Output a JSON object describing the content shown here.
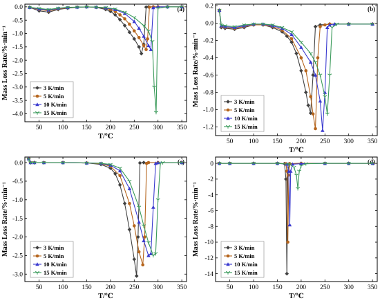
{
  "figure": {
    "panels": [
      "(a)",
      "(b)",
      "(c)",
      "(d)"
    ]
  },
  "chart_data": [
    {
      "type": "line",
      "panel_label": "(a)",
      "xlabel": "T/℃",
      "ylabel": "Mass Loss Rate/%·min⁻¹",
      "xlim": [
        20,
        360
      ],
      "ylim": [
        -4.3,
        0.1
      ],
      "xticks": [
        50,
        100,
        150,
        200,
        250,
        300,
        350
      ],
      "yticks": [
        0.0,
        -0.5,
        -1.0,
        -1.5,
        -2.0,
        -2.5,
        -3.0,
        -3.5,
        -4.0
      ],
      "ytick_labels": [
        "0.0",
        "-0.5",
        "-1.0",
        "-1.5",
        "-2.0",
        "-2.5",
        "-3.0",
        "-3.5",
        "-4.0"
      ],
      "legend_position": "bottom-left",
      "series": [
        {
          "name": "3 K/min",
          "color": "#404040",
          "marker": "diamond",
          "x": [
            30,
            50,
            70,
            90,
            110,
            130,
            150,
            170,
            190,
            200,
            210,
            220,
            230,
            240,
            250,
            260,
            265,
            270,
            275,
            280,
            290,
            300,
            320,
            350
          ],
          "y": [
            -0.02,
            -0.15,
            -0.2,
            -0.1,
            -0.05,
            -0.02,
            0.0,
            -0.02,
            -0.1,
            -0.17,
            -0.3,
            -0.48,
            -0.7,
            -0.95,
            -1.2,
            -1.5,
            -1.75,
            -1.4,
            -0.01,
            0.0,
            0.0,
            0.0,
            0.0,
            0.0
          ]
        },
        {
          "name": "5 K/min",
          "color": "#b5651d",
          "marker": "circle",
          "x": [
            30,
            50,
            70,
            90,
            110,
            130,
            150,
            170,
            190,
            200,
            210,
            220,
            230,
            240,
            250,
            260,
            270,
            275,
            278,
            282,
            290,
            300,
            320,
            350
          ],
          "y": [
            -0.02,
            -0.1,
            -0.15,
            -0.08,
            -0.04,
            -0.01,
            0.0,
            -0.02,
            -0.06,
            -0.1,
            -0.18,
            -0.3,
            -0.45,
            -0.65,
            -0.9,
            -1.15,
            -1.45,
            -1.6,
            -1.2,
            -0.01,
            0.0,
            0.0,
            0.0,
            0.0
          ]
        },
        {
          "name": "10 K/min",
          "color": "#3a3acf",
          "marker": "triangle",
          "x": [
            30,
            50,
            70,
            90,
            110,
            130,
            150,
            170,
            190,
            210,
            230,
            250,
            260,
            270,
            280,
            285,
            290,
            300,
            320,
            350
          ],
          "y": [
            -0.02,
            -0.08,
            -0.12,
            -0.06,
            -0.03,
            -0.01,
            0.0,
            -0.01,
            -0.04,
            -0.1,
            -0.25,
            -0.55,
            -0.8,
            -1.1,
            -1.45,
            -1.6,
            -0.03,
            0.0,
            0.0,
            0.0
          ]
        },
        {
          "name": "15 K/min",
          "color": "#3a9a5a",
          "marker": "tri-down",
          "x": [
            30,
            50,
            70,
            90,
            110,
            130,
            150,
            170,
            190,
            210,
            230,
            250,
            270,
            280,
            288,
            292,
            296,
            300,
            320,
            350
          ],
          "y": [
            -0.02,
            -0.06,
            -0.1,
            -0.05,
            -0.02,
            -0.01,
            0.0,
            -0.01,
            -0.03,
            -0.08,
            -0.2,
            -0.4,
            -0.7,
            -0.9,
            -1.3,
            -3.0,
            -3.95,
            -0.05,
            0.0,
            0.0
          ]
        }
      ]
    },
    {
      "type": "line",
      "panel_label": "(b)",
      "xlabel": "T/℃",
      "ylabel": "Mass Loss Rate/%·min⁻¹",
      "xlim": [
        20,
        360
      ],
      "ylim": [
        -1.3,
        0.22
      ],
      "xticks": [
        50,
        100,
        150,
        200,
        250,
        300,
        350
      ],
      "yticks": [
        0.2,
        0.0,
        -0.2,
        -0.4,
        -0.6,
        -0.8,
        -1.0,
        -1.2
      ],
      "ytick_labels": [
        "0.2",
        "0.0",
        "-0.2",
        "-0.4",
        "-0.6",
        "-0.8",
        "-1.0",
        "-1.2"
      ],
      "legend_position": "bottom-left",
      "series": [
        {
          "name": "3 K/min",
          "color": "#404040",
          "marker": "diamond",
          "x": [
            28,
            32,
            40,
            60,
            80,
            100,
            120,
            140,
            160,
            170,
            180,
            190,
            200,
            210,
            215,
            220,
            225,
            230,
            240,
            260,
            300,
            350
          ],
          "y": [
            0.14,
            -0.05,
            -0.06,
            -0.07,
            -0.05,
            -0.02,
            -0.02,
            -0.05,
            -0.1,
            -0.15,
            -0.22,
            -0.35,
            -0.55,
            -0.8,
            -0.95,
            -1.04,
            -0.6,
            -0.04,
            -0.02,
            -0.01,
            -0.01,
            -0.01
          ]
        },
        {
          "name": "5 K/min",
          "color": "#b5651d",
          "marker": "circle",
          "x": [
            28,
            32,
            40,
            60,
            80,
            100,
            120,
            140,
            160,
            180,
            200,
            210,
            220,
            225,
            230,
            235,
            240,
            250,
            260,
            300,
            350
          ],
          "y": [
            0.15,
            -0.04,
            -0.05,
            -0.06,
            -0.04,
            -0.02,
            -0.02,
            -0.04,
            -0.08,
            -0.18,
            -0.4,
            -0.55,
            -0.85,
            -1.05,
            -1.22,
            -0.4,
            -0.04,
            -0.02,
            -0.01,
            -0.01,
            -0.01
          ]
        },
        {
          "name": "10 K/min",
          "color": "#3a3acf",
          "marker": "triangle",
          "x": [
            28,
            32,
            40,
            60,
            80,
            100,
            120,
            140,
            160,
            180,
            200,
            220,
            230,
            240,
            245,
            250,
            255,
            260,
            270,
            300,
            350
          ],
          "y": [
            0.15,
            -0.03,
            -0.04,
            -0.05,
            -0.03,
            -0.01,
            -0.01,
            -0.03,
            -0.06,
            -0.13,
            -0.28,
            -0.45,
            -0.6,
            -0.9,
            -1.24,
            -0.8,
            -0.05,
            -0.02,
            -0.01,
            -0.01,
            -0.01
          ]
        },
        {
          "name": "15 K/min",
          "color": "#3a9a5a",
          "marker": "tri-down",
          "x": [
            28,
            32,
            40,
            60,
            80,
            100,
            120,
            140,
            160,
            180,
            200,
            220,
            230,
            240,
            250,
            255,
            260,
            265,
            275,
            300,
            350
          ],
          "y": [
            0.15,
            -0.02,
            -0.03,
            -0.04,
            -0.02,
            -0.01,
            -0.01,
            -0.02,
            -0.05,
            -0.1,
            -0.22,
            -0.35,
            -0.45,
            -0.6,
            -0.85,
            -1.05,
            -0.6,
            -0.05,
            -0.01,
            -0.01,
            -0.01
          ]
        }
      ]
    },
    {
      "type": "line",
      "panel_label": "(c)",
      "xlabel": "T/℃",
      "ylabel": "Mass Loss Rate/%·min⁻¹",
      "xlim": [
        20,
        360
      ],
      "ylim": [
        -3.2,
        0.15
      ],
      "xticks": [
        50,
        100,
        150,
        200,
        250,
        300,
        350
      ],
      "yticks": [
        0.0,
        -0.5,
        -1.0,
        -1.5,
        -2.0,
        -2.5,
        -3.0
      ],
      "ytick_labels": [
        "0.0",
        "-0.5",
        "-1.0",
        "-1.5",
        "-2.0",
        "-2.5",
        "-3.0"
      ],
      "legend_position": "bottom-left",
      "series": [
        {
          "name": "3 K/min",
          "color": "#404040",
          "marker": "diamond",
          "x": [
            28,
            32,
            40,
            60,
            100,
            150,
            180,
            200,
            210,
            220,
            230,
            240,
            250,
            255,
            258,
            262,
            270,
            300,
            350
          ],
          "y": [
            0.1,
            0.0,
            0.0,
            0.0,
            0.0,
            -0.01,
            -0.05,
            -0.15,
            -0.3,
            -0.6,
            -1.1,
            -1.8,
            -2.6,
            -3.05,
            -2.0,
            -0.01,
            0.0,
            0.0,
            0.0
          ]
        },
        {
          "name": "5 K/min",
          "color": "#b5651d",
          "marker": "circle",
          "x": [
            28,
            32,
            40,
            60,
            100,
            150,
            180,
            200,
            220,
            240,
            250,
            260,
            268,
            272,
            276,
            280,
            300,
            350
          ],
          "y": [
            0.1,
            0.0,
            0.0,
            0.0,
            0.0,
            -0.01,
            -0.03,
            -0.1,
            -0.35,
            -1.1,
            -1.7,
            -2.4,
            -2.75,
            -2.0,
            -0.02,
            0.0,
            0.0,
            0.0
          ]
        },
        {
          "name": "10 K/min",
          "color": "#3a3acf",
          "marker": "triangle",
          "x": [
            28,
            32,
            40,
            60,
            100,
            150,
            180,
            200,
            220,
            240,
            260,
            270,
            280,
            285,
            290,
            295,
            300,
            350
          ],
          "y": [
            0.1,
            0.0,
            0.0,
            0.0,
            0.0,
            -0.01,
            -0.02,
            -0.07,
            -0.22,
            -0.7,
            -1.6,
            -2.1,
            -2.5,
            -2.45,
            -1.2,
            -0.02,
            0.0,
            0.0
          ]
        },
        {
          "name": "15 K/min",
          "color": "#3a9a5a",
          "marker": "tri-down",
          "x": [
            28,
            32,
            40,
            60,
            100,
            150,
            180,
            200,
            220,
            240,
            260,
            270,
            280,
            290,
            295,
            300,
            305,
            310,
            350
          ],
          "y": [
            0.1,
            0.0,
            0.0,
            0.0,
            0.0,
            -0.01,
            -0.02,
            -0.05,
            -0.15,
            -0.5,
            -1.2,
            -1.7,
            -2.15,
            -2.5,
            -2.45,
            -1.0,
            -0.02,
            0.0,
            0.0
          ]
        }
      ]
    },
    {
      "type": "line",
      "panel_label": "(d)",
      "xlabel": "T/℃",
      "ylabel": "Mass Loss Rate/%·min⁻¹",
      "xlim": [
        20,
        360
      ],
      "ylim": [
        -15,
        0.8
      ],
      "xticks": [
        50,
        100,
        150,
        200,
        250,
        300,
        350
      ],
      "yticks": [
        0,
        -2,
        -4,
        -6,
        -8,
        -10,
        -12,
        -14
      ],
      "ytick_labels": [
        "0",
        "-2",
        "-4",
        "-6",
        "-8",
        "-10",
        "-12",
        "-14"
      ],
      "legend_position": "bottom-left",
      "series": [
        {
          "name": "3 K/min",
          "color": "#404040",
          "marker": "diamond",
          "x": [
            28,
            50,
            100,
            150,
            165,
            168,
            170,
            172,
            175,
            200,
            250,
            300,
            350
          ],
          "y": [
            0.0,
            0.0,
            0.0,
            0.0,
            -0.05,
            -2.0,
            -14.0,
            -1.0,
            -0.05,
            0.0,
            0.0,
            0.0,
            0.0
          ]
        },
        {
          "name": "5 K/min",
          "color": "#b5651d",
          "marker": "circle",
          "x": [
            28,
            50,
            100,
            150,
            168,
            170,
            172,
            174,
            176,
            200,
            250,
            300,
            350
          ],
          "y": [
            0.0,
            0.0,
            0.0,
            0.0,
            -0.05,
            -1.0,
            -10.0,
            -1.5,
            -0.05,
            0.0,
            0.0,
            0.0,
            0.0
          ]
        },
        {
          "name": "10 K/min",
          "color": "#3a3acf",
          "marker": "triangle",
          "x": [
            28,
            50,
            100,
            150,
            170,
            174,
            176,
            178,
            182,
            200,
            250,
            300,
            350
          ],
          "y": [
            0.0,
            0.0,
            0.0,
            0.0,
            -0.1,
            -1.0,
            -7.8,
            -1.0,
            -0.1,
            -0.05,
            0.0,
            0.0,
            0.0
          ]
        },
        {
          "name": "15 K/min",
          "color": "#3a9a5a",
          "marker": "tri-down",
          "x": [
            28,
            50,
            100,
            150,
            175,
            185,
            190,
            193,
            196,
            200,
            210,
            250,
            300,
            350
          ],
          "y": [
            0.0,
            0.0,
            0.0,
            0.0,
            -0.1,
            -0.5,
            -1.5,
            -3.2,
            -1.0,
            -0.3,
            -0.05,
            0.0,
            0.0,
            0.0
          ]
        }
      ]
    }
  ]
}
